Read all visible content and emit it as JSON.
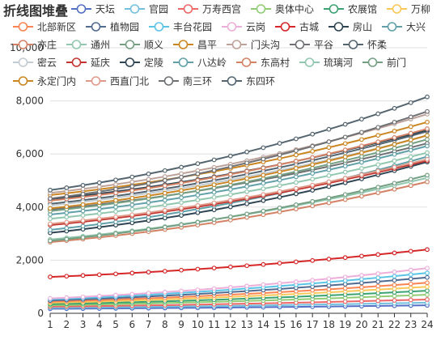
{
  "chart_data": {
    "type": "line",
    "title": "折线图堆叠",
    "xlabel": "",
    "ylabel": "",
    "categories": [
      "1",
      "2",
      "3",
      "4",
      "5",
      "6",
      "7",
      "8",
      "9",
      "10",
      "11",
      "12",
      "13",
      "14",
      "15",
      "16",
      "17",
      "18",
      "19",
      "20",
      "21",
      "22",
      "23",
      "24"
    ],
    "yticks": [
      "0",
      "2,000",
      "4,000",
      "6,000",
      "8,000",
      "10,000"
    ],
    "ylim": [
      0,
      10000
    ],
    "grid": true,
    "legend_position": "top-left",
    "stacked": true,
    "series": [
      {
        "name": "天坛",
        "color": "#5470c6"
      },
      {
        "name": "官园",
        "color": "#73c0de"
      },
      {
        "name": "万寿西宫",
        "color": "#ee6666"
      },
      {
        "name": "奥体中心",
        "color": "#91cc75"
      },
      {
        "name": "农展馆",
        "color": "#3ba272"
      },
      {
        "name": "万柳",
        "color": "#fac858"
      },
      {
        "name": "北部新区",
        "color": "#fc8452"
      },
      {
        "name": "植物园",
        "color": "#516b91"
      },
      {
        "name": "丰台花园",
        "color": "#59c4e6"
      },
      {
        "name": "云岗",
        "color": "#edafda"
      },
      {
        "name": "古城",
        "color": "#d62728"
      },
      {
        "name": "房山",
        "color": "#2f4554"
      },
      {
        "name": "大兴",
        "color": "#61a0a8"
      },
      {
        "name": "亦庄",
        "color": "#d48265"
      },
      {
        "name": "通州",
        "color": "#91c7ae"
      },
      {
        "name": "顺义",
        "color": "#749f83"
      },
      {
        "name": "昌平",
        "color": "#ca8622"
      },
      {
        "name": "门头沟",
        "color": "#bda29a"
      },
      {
        "name": "平谷",
        "color": "#6e7074"
      },
      {
        "name": "怀柔",
        "color": "#546570"
      },
      {
        "name": "密云",
        "color": "#c4ccd3"
      },
      {
        "name": "延庆",
        "color": "#c23531"
      },
      {
        "name": "定陵",
        "color": "#2f4554"
      },
      {
        "name": "八达岭",
        "color": "#61a0a8"
      },
      {
        "name": "东高村",
        "color": "#d48265"
      },
      {
        "name": "琉璃河",
        "color": "#91c7ae"
      },
      {
        "name": "前门",
        "color": "#749f83"
      },
      {
        "name": "永定门内",
        "color": "#ca8622"
      },
      {
        "name": "西直门北",
        "color": "#e09a8a"
      },
      {
        "name": "南三环",
        "color": "#6e7074"
      },
      {
        "name": "东四环",
        "color": "#546570"
      }
    ],
    "cumulative_first": [
      170,
      210,
      250,
      300,
      345,
      395,
      440,
      480,
      525,
      560,
      1370,
      3030,
      3140,
      2680,
      2780,
      2730,
      4450,
      4530,
      3900,
      4120,
      4060,
      3320,
      4300,
      3720,
      4240,
      3560,
      3850,
      3950,
      3370,
      4320,
      4640
    ],
    "cumulative_last": [
      300,
      400,
      520,
      700,
      850,
      1000,
      1150,
      1350,
      1520,
      1700,
      2400,
      5700,
      5900,
      4950,
      5100,
      5200,
      7200,
      7500,
      6400,
      6850,
      6700,
      5750,
      6900,
      6300,
      6950,
      6050,
      6550,
      6700,
      5800,
      7600,
      8150
    ]
  }
}
